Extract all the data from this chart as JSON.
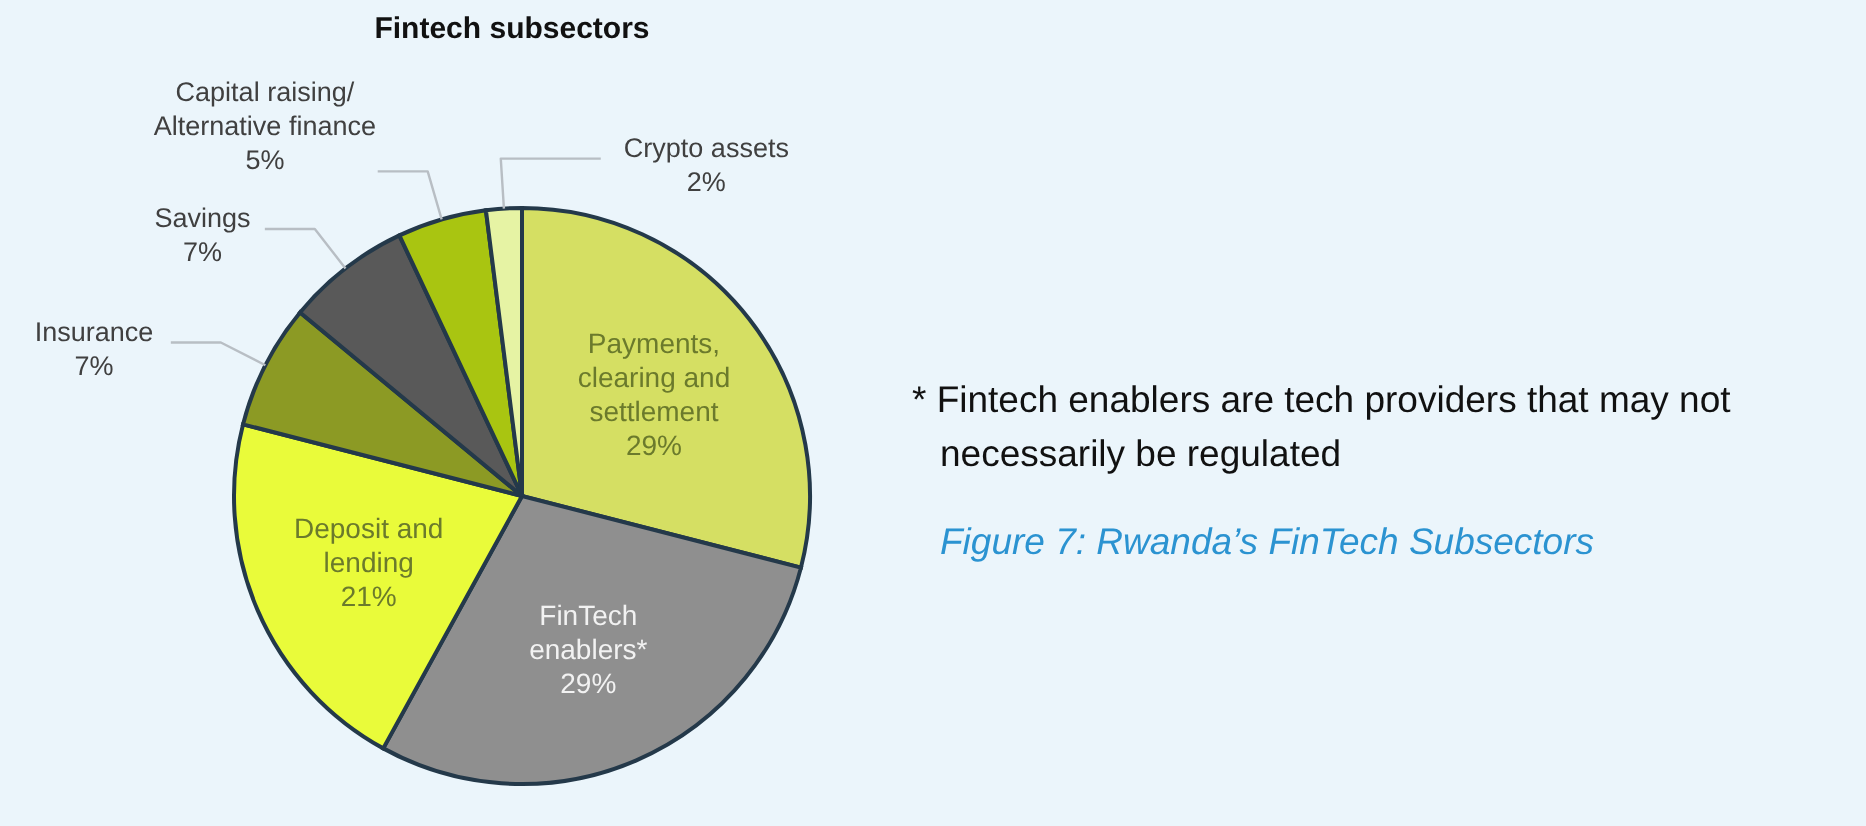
{
  "chart_data": {
    "type": "pie",
    "title": "Fintech subsectors",
    "categories": [
      "Payments, clearing and settlement",
      "FinTech enablers*",
      "Deposit and lending",
      "Insurance",
      "Savings",
      "Capital raising/Alternative finance",
      "Crypto assets"
    ],
    "values": [
      29,
      29,
      21,
      7,
      7,
      5,
      2
    ],
    "colors": [
      "#d5df63",
      "#8f8f8f",
      "#e9fb3a",
      "#8c9a24",
      "#595959",
      "#a9c511",
      "#e6f3a4"
    ],
    "value_labels": [
      "29%",
      "29%",
      "21%",
      "7%",
      "7%",
      "5%",
      "2%"
    ],
    "annotations": [
      "* Fintech enablers are tech providers that may not necessarily be regulated",
      "Figure 7: Rwanda’s FinTech Subsectors"
    ]
  }
}
